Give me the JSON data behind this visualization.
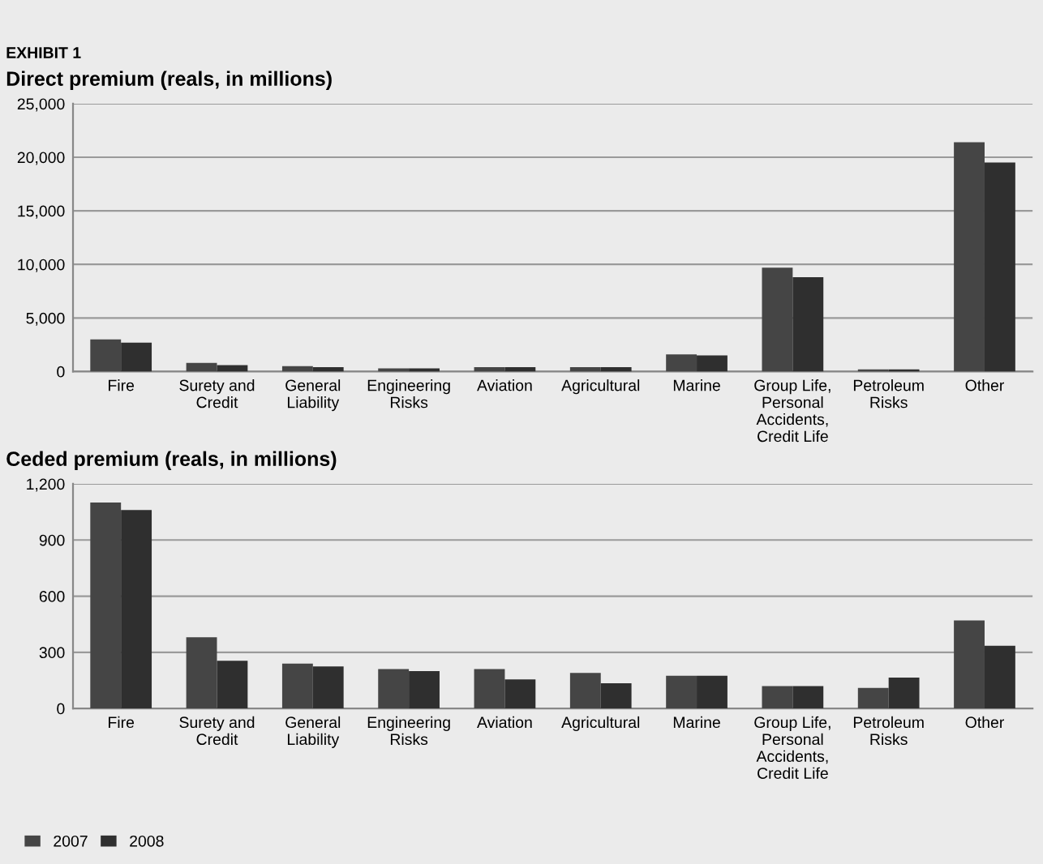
{
  "chart_data": [
    {
      "type": "bar",
      "title": "Direct premium (reals, in millions)",
      "annotations": [
        "EXHIBIT 1"
      ],
      "categories": [
        "Fire",
        "Surety and\nCredit",
        "General\nLiability",
        "Engineering\nRisks",
        "Aviation",
        "Agricultural",
        "Marine",
        "Group Life,\nPersonal\nAccidents,\nCredit Life",
        "Petroleum\nRisks",
        "Other"
      ],
      "series": [
        {
          "color": "#454545",
          "values": [
            3000,
            800,
            500,
            300,
            400,
            400,
            1600,
            9700,
            200,
            21400
          ]
        },
        {
          "color": "#2f2f2f",
          "values": [
            2700,
            600,
            400,
            300,
            400,
            400,
            1500,
            8800,
            200,
            19500
          ]
        }
      ],
      "ylim": [
        0,
        25000
      ],
      "yticks": [
        0,
        {
          "value": 5000,
          "label": "5,000"
        },
        {
          "value": 10000,
          "label": "10,000"
        },
        {
          "value": 15000,
          "label": "15,000"
        },
        {
          "value": 20000,
          "label": "20,000"
        },
        {
          "value": 25000,
          "label": "25,000"
        }
      ],
      "grid": "y"
    },
    {
      "type": "bar",
      "title": "Ceded premium (reals, in millions)",
      "categories": [
        "Fire",
        "Surety and\nCredit",
        "General\nLiability",
        "Engineering\nRisks",
        "Aviation",
        "Agricultural",
        "Marine",
        "Group Life,\nPersonal\nAccidents,\nCredit Life",
        "Petroleum\nRisks",
        "Other"
      ],
      "series": [
        {
          "name": "2007",
          "color": "#454545",
          "values": [
            1100,
            380,
            240,
            210,
            210,
            190,
            175,
            120,
            110,
            470
          ]
        },
        {
          "name": "2008",
          "color": "#2f2f2f",
          "values": [
            1060,
            255,
            225,
            200,
            155,
            135,
            175,
            120,
            165,
            335
          ]
        }
      ],
      "ylim": [
        0,
        1200
      ],
      "yticks": [
        0,
        300,
        600,
        900,
        {
          "value": 1200,
          "label": "1,200"
        }
      ],
      "grid": "y",
      "legend": "bottom left"
    }
  ]
}
